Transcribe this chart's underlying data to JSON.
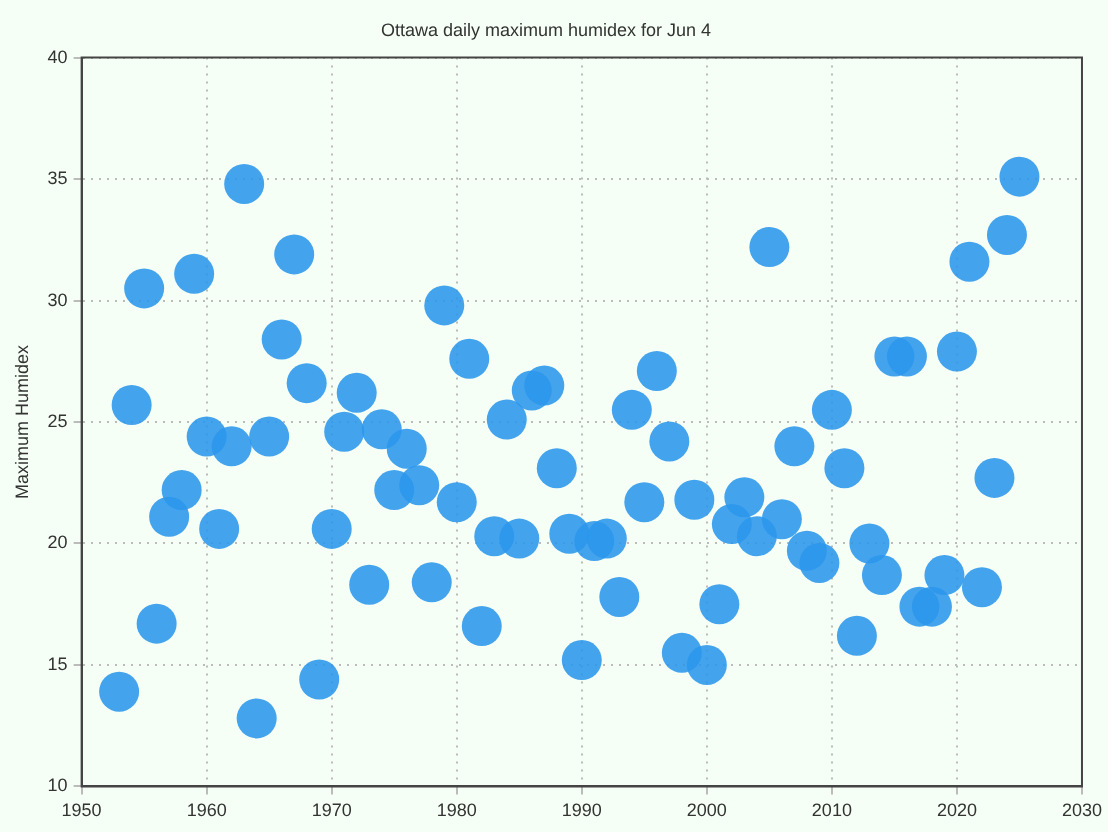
{
  "chart_data": {
    "type": "scatter",
    "title": "Ottawa daily maximum humidex for Jun 4",
    "ylabel": "Maximum Humidex",
    "x": [
      1953,
      1954,
      1955,
      1956,
      1957,
      1958,
      1959,
      1960,
      1961,
      1962,
      1963,
      1964,
      1965,
      1966,
      1967,
      1968,
      1969,
      1970,
      1971,
      1972,
      1973,
      1974,
      1975,
      1976,
      1977,
      1978,
      1979,
      1980,
      1981,
      1982,
      1983,
      1984,
      1985,
      1986,
      1987,
      1988,
      1989,
      1990,
      1991,
      1992,
      1993,
      1994,
      1995,
      1996,
      1997,
      1998,
      1999,
      2000,
      2001,
      2002,
      2003,
      2004,
      2005,
      2006,
      2007,
      2008,
      2009,
      2010,
      2011,
      2012,
      2013,
      2014,
      2015,
      2016,
      2017,
      2018,
      2019,
      2020,
      2021,
      2022,
      2023,
      2024,
      2025
    ],
    "values": [
      13.9,
      25.7,
      30.5,
      16.7,
      21.1,
      22.2,
      31.1,
      24.4,
      20.6,
      24.0,
      34.8,
      12.8,
      24.4,
      28.4,
      31.9,
      26.6,
      14.4,
      20.6,
      24.6,
      26.2,
      18.3,
      24.7,
      22.2,
      23.9,
      22.4,
      18.4,
      29.8,
      21.7,
      27.6,
      16.6,
      20.3,
      25.1,
      20.2,
      26.3,
      26.5,
      23.1,
      20.4,
      15.2,
      20.1,
      20.2,
      17.8,
      25.5,
      21.7,
      27.1,
      24.2,
      15.5,
      21.8,
      15.0,
      17.5,
      20.8,
      21.9,
      20.3,
      32.2,
      21.0,
      24.0,
      19.7,
      19.2,
      25.5,
      23.1,
      16.2,
      20.0,
      18.7,
      27.7,
      27.7,
      17.4,
      17.4,
      18.7,
      27.9,
      31.6,
      18.2,
      22.7,
      32.7,
      35.1
    ],
    "color": "#2b96ec",
    "marker": "circle",
    "xlim": [
      1950,
      2030
    ],
    "xticks": [
      1950,
      1960,
      1970,
      1980,
      1990,
      2000,
      2010,
      2020,
      2030
    ],
    "ylim": [
      10,
      40
    ],
    "yticks": [
      10,
      15,
      20,
      25,
      30,
      35,
      40
    ],
    "grid": true
  }
}
